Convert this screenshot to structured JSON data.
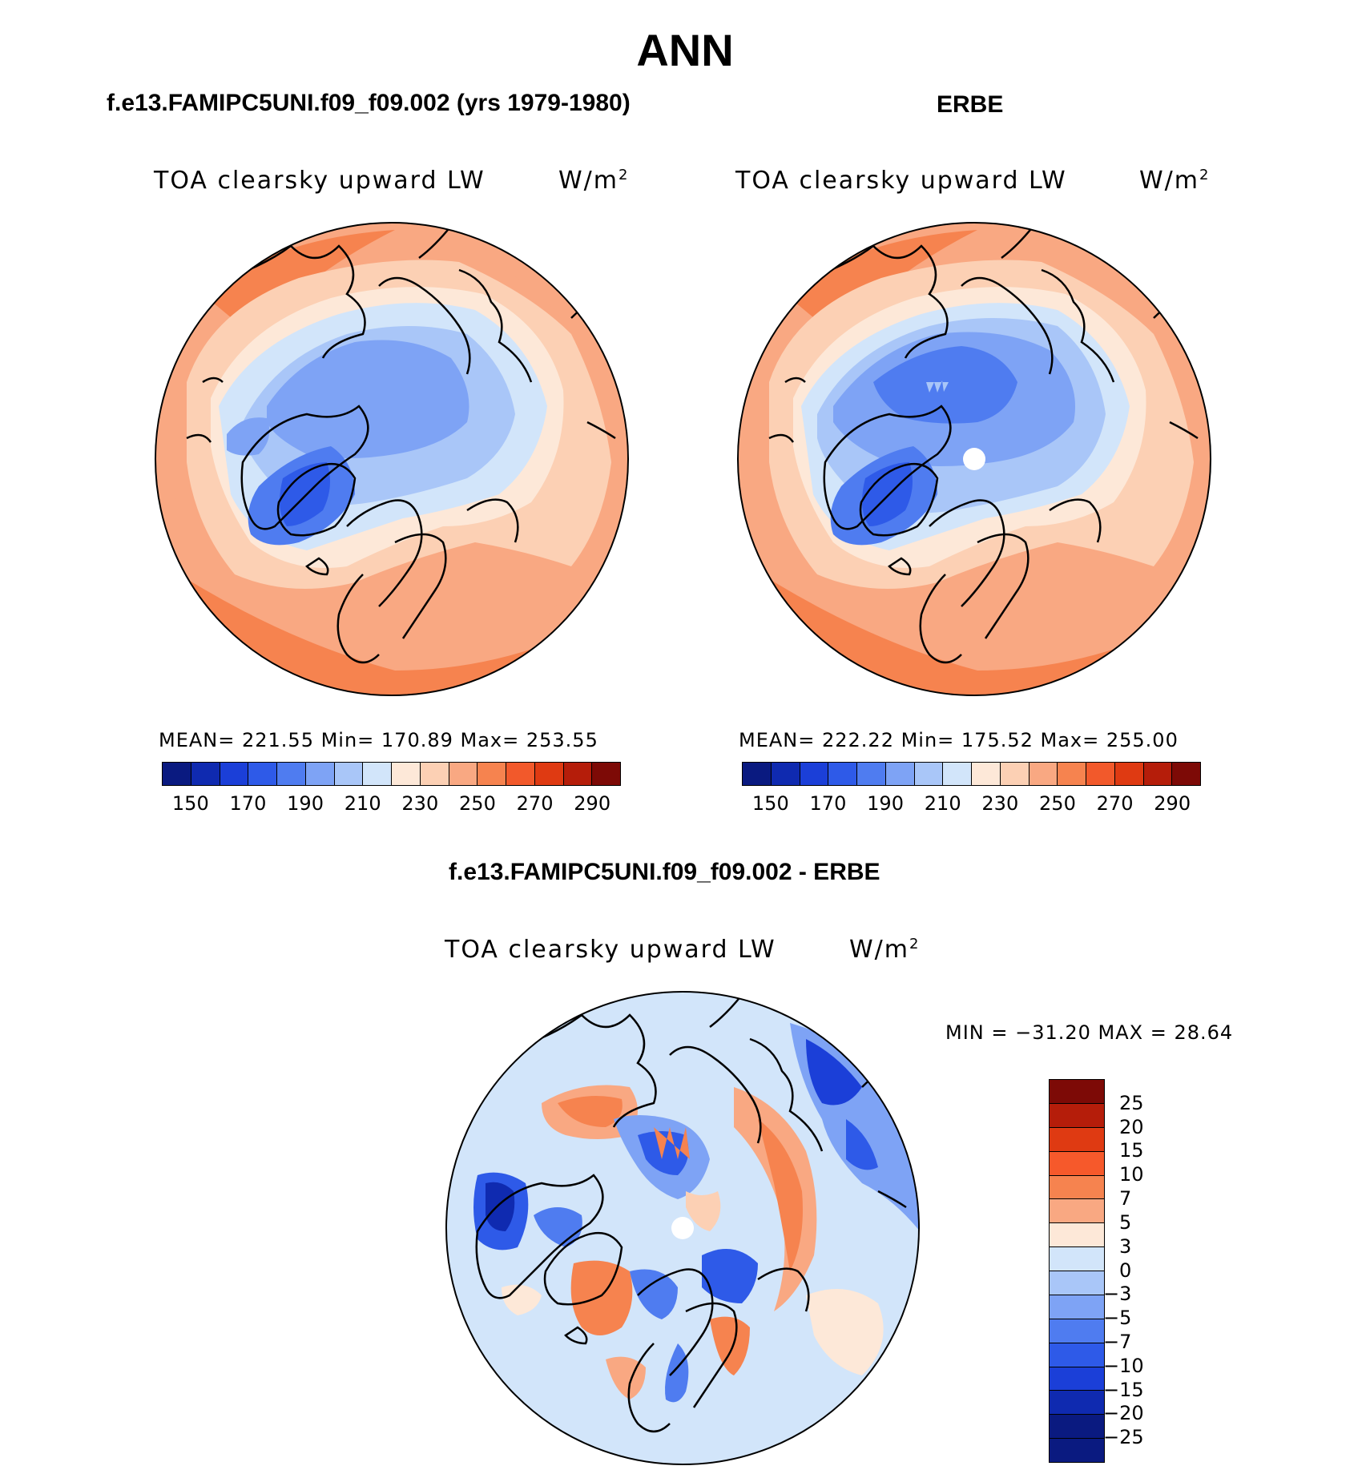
{
  "figure": {
    "title": "ANN"
  },
  "panels": [
    {
      "case_title": "f.e13.FAMIPC5UNI.f09_f09.002 (yrs 1979-1980)",
      "variable": "TOA clearsky upward LW",
      "units_base": "W/m",
      "units_exp": "2",
      "stats": "MEAN= 221.55   Min= 170.89   Max= 253.55"
    },
    {
      "case_title": "ERBE",
      "variable": "TOA clearsky upward LW",
      "units_base": "W/m",
      "units_exp": "2",
      "stats": "MEAN= 222.22   Min= 175.52   Max= 255.00"
    },
    {
      "case_title": "f.e13.FAMIPC5UNI.f09_f09.002 - ERBE",
      "variable": "TOA clearsky upward LW",
      "units_base": "W/m",
      "units_exp": "2",
      "stats": "MIN = −31.20 MAX =   28.64"
    }
  ],
  "chart_data": [
    {
      "type": "heatmap",
      "projection": "north-polar-stereographic",
      "mean": 221.55,
      "min": 170.89,
      "max": 253.55,
      "colorbar": {
        "orientation": "horizontal",
        "tick_labels": [
          "150",
          "170",
          "190",
          "210",
          "230",
          "250",
          "270",
          "290"
        ],
        "levels": [
          140,
          150,
          160,
          170,
          180,
          190,
          200,
          210,
          220,
          230,
          240,
          250,
          260,
          270,
          280,
          290,
          300
        ],
        "colors": [
          "#0a1a80",
          "#0f2ab0",
          "#1b3fd8",
          "#2e5ae8",
          "#4f7cf0",
          "#7ea3f5",
          "#a9c6f8",
          "#d2e5fa",
          "#fde8d8",
          "#fcd0b4",
          "#f9a882",
          "#f6834f",
          "#f2592b",
          "#df3a12",
          "#b51d0a",
          "#7d0a06"
        ]
      },
      "regions_approx": {
        "center_arctic": "200-210",
        "greenland": "170-190",
        "mid_latitudes": "230-250",
        "southern_edge": "250-260"
      }
    },
    {
      "type": "heatmap",
      "projection": "north-polar-stereographic",
      "mean": 222.22,
      "min": 175.52,
      "max": 255.0,
      "colorbar": {
        "orientation": "horizontal",
        "tick_labels": [
          "150",
          "170",
          "190",
          "210",
          "230",
          "250",
          "270",
          "290"
        ],
        "levels": [
          140,
          150,
          160,
          170,
          180,
          190,
          200,
          210,
          220,
          230,
          240,
          250,
          260,
          270,
          280,
          290,
          300
        ],
        "colors": [
          "#0a1a80",
          "#0f2ab0",
          "#1b3fd8",
          "#2e5ae8",
          "#4f7cf0",
          "#7ea3f5",
          "#a9c6f8",
          "#d2e5fa",
          "#fde8d8",
          "#fcd0b4",
          "#f9a882",
          "#f6834f",
          "#f2592b",
          "#df3a12",
          "#b51d0a",
          "#7d0a06"
        ]
      },
      "regions_approx": {
        "center_arctic": "190-200",
        "greenland": "170-190",
        "mid_latitudes": "230-250",
        "southern_edge": "250-260"
      }
    },
    {
      "type": "heatmap",
      "projection": "north-polar-stereographic",
      "min": -31.2,
      "max": 28.64,
      "colorbar": {
        "orientation": "vertical",
        "tick_labels": [
          "25",
          "20",
          "15",
          "10",
          "7",
          "5",
          "3",
          "0",
          "−3",
          "−5",
          "−7",
          "−10",
          "−15",
          "−20",
          "−25"
        ],
        "levels": [
          -25,
          -20,
          -15,
          -10,
          -7,
          -5,
          -3,
          0,
          3,
          5,
          7,
          10,
          15,
          20,
          25
        ],
        "colors_top_to_bottom": [
          "#7d0a06",
          "#b51d0a",
          "#df3a12",
          "#f6592b",
          "#f6834f",
          "#f9a882",
          "#fde8d8",
          "#d2e5fa",
          "#a9c6f8",
          "#7ea3f5",
          "#4f7cf0",
          "#2e5ae8",
          "#1b3fd8",
          "#0f2ab0",
          "#0a1a80",
          "#0a1a80"
        ]
      }
    }
  ]
}
